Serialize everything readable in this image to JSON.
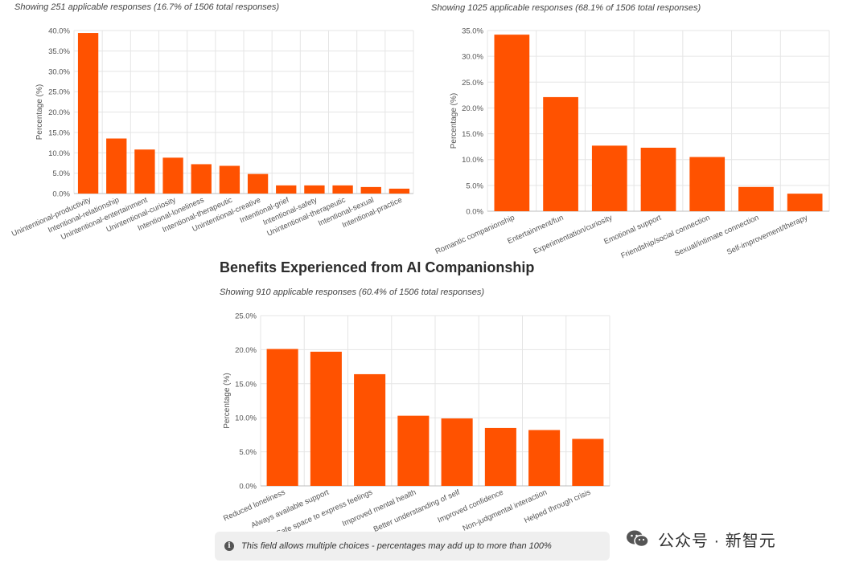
{
  "colors": {
    "bar": "#ff5200",
    "grid": "#e5e5e5",
    "axis": "#bdbdbd",
    "text": "#555555"
  },
  "charts": {
    "top_left": {
      "subtitle": "Showing 251 applicable responses (16.7% of 1506 total responses)"
    },
    "top_right": {
      "subtitle": "Showing 1025 applicable responses (68.1% of 1506 total responses)"
    },
    "bottom": {
      "title": "Benefits Experienced from AI Companionship",
      "subtitle": "Showing 910 applicable responses (60.4% of 1506 total responses)"
    }
  },
  "note": {
    "icon": "info-icon",
    "text": "This field allows multiple choices - percentages may add up to more than 100%"
  },
  "watermark": {
    "text": "公众号 · 新智元",
    "icon": "wechat-logo-icon"
  },
  "chart_data": [
    {
      "type": "bar",
      "title": "",
      "xlabel": "",
      "ylabel": "Percentage (%)",
      "ylim": [
        0,
        40
      ],
      "yticks": [
        "0.0%",
        "5.0%",
        "10.0%",
        "15.0%",
        "20.0%",
        "25.0%",
        "30.0%",
        "35.0%",
        "40.0%"
      ],
      "categories": [
        "Unintentional-productivity",
        "Intentional-relationship",
        "Unintentional-entertainment",
        "Unintentional-curiosity",
        "Intentional-loneliness",
        "Intentional-therapeutic",
        "Unintentional-creative",
        "Intentional-grief",
        "Intentional-safety",
        "Unintentional-therapeutic",
        "Intentional-sexual",
        "Intentional-practice"
      ],
      "values": [
        39.4,
        13.5,
        10.8,
        8.8,
        7.2,
        6.8,
        4.8,
        2.0,
        2.0,
        2.0,
        1.6,
        1.2
      ],
      "grid": true
    },
    {
      "type": "bar",
      "title": "",
      "xlabel": "",
      "ylabel": "Percentage (%)",
      "ylim": [
        0,
        35
      ],
      "yticks": [
        "0.0%",
        "5.0%",
        "10.0%",
        "15.0%",
        "20.0%",
        "25.0%",
        "30.0%",
        "35.0%"
      ],
      "categories": [
        "Romantic companionship",
        "Entertainment/fun",
        "Experimentation/curiosity",
        "Emotional support",
        "Friendship/social connection",
        "Sexual/intimate connection",
        "Self-improvement/therapy"
      ],
      "values": [
        34.2,
        22.1,
        12.7,
        12.3,
        10.5,
        4.7,
        3.4
      ],
      "grid": true
    },
    {
      "type": "bar",
      "title": "Benefits Experienced from AI Companionship",
      "xlabel": "",
      "ylabel": "Percentage (%)",
      "ylim": [
        0,
        25
      ],
      "yticks": [
        "0.0%",
        "5.0%",
        "10.0%",
        "15.0%",
        "20.0%",
        "25.0%"
      ],
      "categories": [
        "Reduced loneliness",
        "Always available support",
        "Safe space to express feelings",
        "Improved mental health",
        "Better understanding of self",
        "Improved confidence",
        "Non-judgmental interaction",
        "Helped through crisis"
      ],
      "values": [
        20.1,
        19.7,
        16.4,
        10.3,
        9.9,
        8.5,
        8.2,
        6.9
      ],
      "grid": true
    }
  ]
}
